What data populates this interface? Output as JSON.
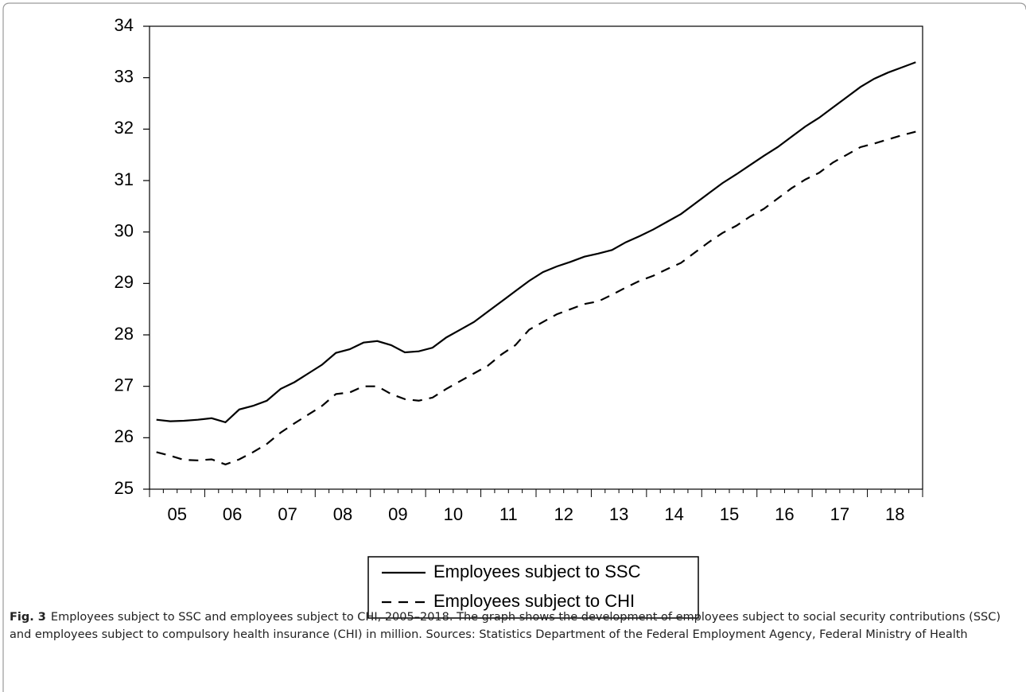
{
  "chart_data": {
    "type": "line",
    "categories": [
      "05",
      null,
      null,
      null,
      "06",
      null,
      null,
      null,
      "07",
      null,
      null,
      null,
      "08",
      null,
      null,
      null,
      "09",
      null,
      null,
      null,
      "10",
      null,
      null,
      null,
      "11",
      null,
      null,
      null,
      "12",
      null,
      null,
      null,
      "13",
      null,
      null,
      null,
      "14",
      null,
      null,
      null,
      "15",
      null,
      null,
      null,
      "16",
      null,
      null,
      null,
      "17",
      null,
      null,
      null,
      "18",
      null,
      null,
      null
    ],
    "series": [
      {
        "name": "Employees subject to SSC",
        "color": "#000000",
        "line_style": "solid",
        "values": [
          26.35,
          26.32,
          26.33,
          26.35,
          26.38,
          26.3,
          26.55,
          26.62,
          26.72,
          26.95,
          27.08,
          27.25,
          27.42,
          27.65,
          27.72,
          27.85,
          27.88,
          27.8,
          27.66,
          27.68,
          27.75,
          27.95,
          28.1,
          28.25,
          28.45,
          28.65,
          28.85,
          29.05,
          29.22,
          29.33,
          29.42,
          29.52,
          29.58,
          29.65,
          29.8,
          29.92,
          30.05,
          30.2,
          30.35,
          30.55,
          30.75,
          30.95,
          31.12,
          31.3,
          31.48,
          31.65,
          31.85,
          32.05,
          32.22,
          32.42,
          32.62,
          32.82,
          32.98,
          33.1,
          33.2,
          33.3
        ]
      },
      {
        "name": "Employees subject to CHI",
        "color": "#000000",
        "line_style": "dashed",
        "values": [
          25.72,
          25.65,
          25.57,
          25.56,
          25.58,
          25.48,
          25.58,
          25.72,
          25.88,
          26.1,
          26.28,
          26.45,
          26.62,
          26.85,
          26.88,
          27.0,
          27.0,
          26.85,
          26.75,
          26.72,
          26.78,
          26.95,
          27.1,
          27.25,
          27.4,
          27.62,
          27.8,
          28.1,
          28.25,
          28.4,
          28.5,
          28.6,
          28.65,
          28.78,
          28.92,
          29.05,
          29.15,
          29.28,
          29.4,
          29.6,
          29.8,
          29.98,
          30.12,
          30.3,
          30.45,
          30.65,
          30.85,
          31.02,
          31.15,
          31.35,
          31.5,
          31.65,
          31.72,
          31.8,
          31.88,
          31.95
        ]
      }
    ],
    "ylim": [
      25,
      34
    ],
    "yticks": [
      25,
      26,
      27,
      28,
      29,
      30,
      31,
      32,
      33,
      34
    ],
    "grid": false,
    "legend": "bottom"
  },
  "caption": {
    "label": "Fig. 3",
    "text": "Employees subject to SSC and employees subject to CHI, 2005–2018. The graph shows the development of employees subject to social security contributions (SSC) and employees subject to compulsory health insurance (CHI) in million. Sources: Statistics Department of the Federal Employment Agency, Federal Ministry of Health"
  }
}
